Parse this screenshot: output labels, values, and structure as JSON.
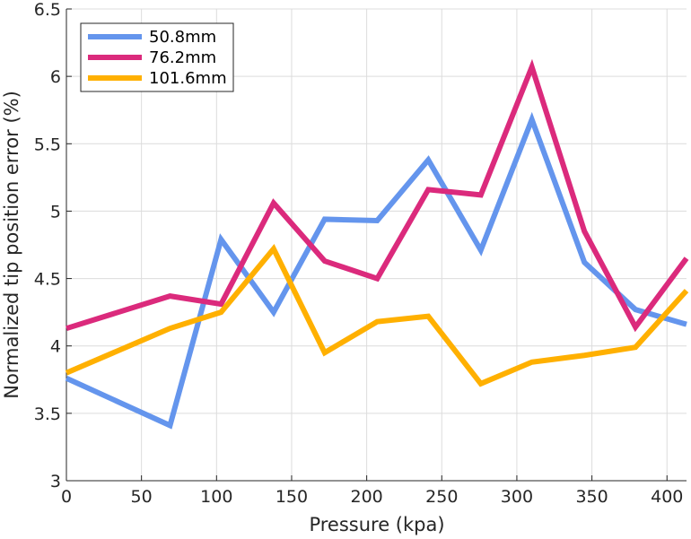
{
  "chart_data": {
    "type": "line",
    "title": "",
    "xlabel": "Pressure (kpa)",
    "ylabel": "Normalized tip position error (%)",
    "xlim": [
      0,
      413
    ],
    "ylim": [
      3,
      6.5
    ],
    "xticks": [
      0,
      50,
      100,
      150,
      200,
      250,
      300,
      350,
      400
    ],
    "yticks": [
      3,
      3.5,
      4,
      4.5,
      5,
      5.5,
      6,
      6.5
    ],
    "xtick_labels": [
      "0",
      "50",
      "100",
      "150",
      "200",
      "250",
      "300",
      "350",
      "400"
    ],
    "ytick_labels": [
      "3",
      "3.5",
      "4",
      "4.5",
      "5",
      "5.5",
      "6",
      "6.5"
    ],
    "grid": true,
    "legend_position": "top-left",
    "x": [
      0,
      69,
      103,
      138,
      172,
      207,
      241,
      276,
      310,
      345,
      379,
      413
    ],
    "series": [
      {
        "name": "50.8mm",
        "color": "#6495ED",
        "values": [
          3.76,
          3.41,
          4.79,
          4.25,
          4.94,
          4.93,
          5.38,
          4.71,
          5.68,
          4.62,
          4.27,
          4.16
        ]
      },
      {
        "name": "76.2mm",
        "color": "#DB2A7C",
        "values": [
          4.13,
          4.37,
          4.31,
          5.06,
          4.63,
          4.5,
          5.16,
          5.12,
          6.07,
          4.85,
          4.14,
          4.65
        ]
      },
      {
        "name": "101.6mm",
        "color": "#FFB000",
        "values": [
          3.8,
          4.13,
          4.25,
          4.72,
          3.95,
          4.18,
          4.22,
          3.72,
          3.88,
          3.93,
          3.99,
          4.41
        ]
      }
    ]
  }
}
